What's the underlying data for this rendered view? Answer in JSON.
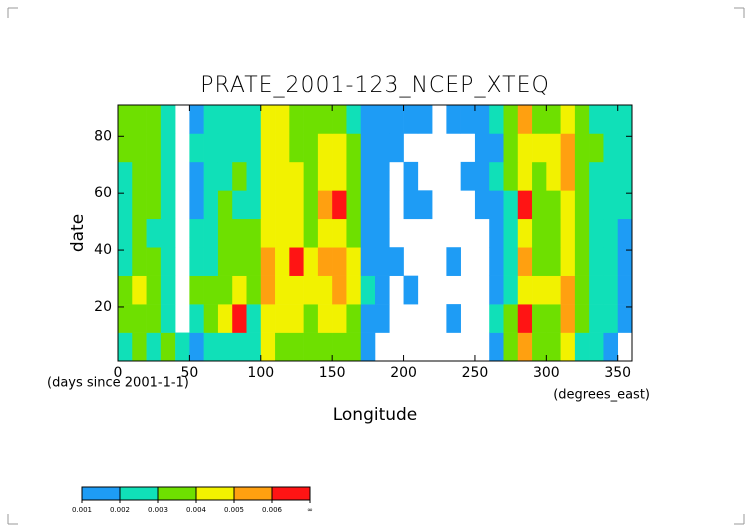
{
  "chart_data": {
    "type": "heatmap",
    "title": "PRATE_2001-123_NCEP_XTEQ",
    "x_label": "Longitude",
    "y_label": "date",
    "x_units": "(degrees_east)",
    "y_units": "(days since 2001-1-1)",
    "xlim": [
      0,
      360
    ],
    "ylim": [
      1,
      91
    ],
    "xticks": [
      0,
      50,
      100,
      150,
      200,
      250,
      300,
      350
    ],
    "yticks": [
      20,
      40,
      60,
      80
    ],
    "x_edges": [
      0,
      10,
      20,
      30,
      40,
      50,
      60,
      70,
      80,
      90,
      100,
      110,
      120,
      130,
      140,
      150,
      160,
      170,
      180,
      190,
      200,
      210,
      220,
      230,
      240,
      250,
      260,
      270,
      280,
      290,
      300,
      310,
      320,
      330,
      340,
      350,
      360
    ],
    "y_edges": [
      1,
      11,
      21,
      31,
      41,
      51,
      61,
      71,
      81,
      91
    ],
    "z": [
      [
        0.0025,
        0.003,
        0.0025,
        0.003,
        0.002,
        0.0015,
        0.002,
        0.0025,
        0.002,
        0.002,
        0.004,
        0.0035,
        0.0035,
        0.003,
        0.0035,
        0.0035,
        0.003,
        0.0015,
        0,
        0,
        0,
        0,
        0,
        0,
        0,
        0,
        0.0015,
        0.003,
        0.005,
        0.0035,
        0.0035,
        0.0045,
        0.0025,
        0.002,
        0.0015,
        0
      ],
      [
        0.003,
        0.003,
        0.003,
        0.0025,
        0,
        0.002,
        0.003,
        0.004,
        0.006,
        0.0025,
        0.0045,
        0.0045,
        0.004,
        0.0035,
        0.004,
        0.0045,
        0.0035,
        0.0015,
        0.001,
        0,
        0,
        0,
        0,
        0.001,
        0,
        0,
        0.002,
        0.003,
        0.006,
        0.0035,
        0.0035,
        0.005,
        0.003,
        0.002,
        0.002,
        0.0015
      ],
      [
        0.0035,
        0.004,
        0.0035,
        0.0025,
        0,
        0.003,
        0.003,
        0.0035,
        0.004,
        0.003,
        0.005,
        0.0045,
        0.0045,
        0.004,
        0.0045,
        0.005,
        0.004,
        0.002,
        0.001,
        0,
        0.001,
        0,
        0,
        0,
        0,
        0,
        0.0015,
        0.0025,
        0.0045,
        0.004,
        0.004,
        0.005,
        0.003,
        0.0025,
        0.002,
        0.0015
      ],
      [
        0.0025,
        0.003,
        0.003,
        0.002,
        0,
        0.002,
        0.0025,
        0.003,
        0.003,
        0.003,
        0.0055,
        0.0045,
        0.006,
        0.004,
        0.005,
        0.0055,
        0.004,
        0.0015,
        0.001,
        0.001,
        0,
        0,
        0,
        0.001,
        0,
        0,
        0.001,
        0.0025,
        0.0055,
        0.0035,
        0.003,
        0.0045,
        0.003,
        0.002,
        0.002,
        0.0015
      ],
      [
        0.0025,
        0.003,
        0.0025,
        0.002,
        0,
        0.002,
        0.0025,
        0.003,
        0.003,
        0.003,
        0.0045,
        0.004,
        0.0045,
        0.0035,
        0.0045,
        0.0045,
        0.0035,
        0.0015,
        0.001,
        0,
        0,
        0,
        0,
        0,
        0,
        0,
        0.0015,
        0.0025,
        0.004,
        0.0035,
        0.0035,
        0.0045,
        0.003,
        0.002,
        0.002,
        0.0015
      ],
      [
        0.002,
        0.003,
        0.003,
        0.0025,
        0,
        0.0015,
        0.002,
        0.003,
        0.0025,
        0.0025,
        0.0045,
        0.004,
        0.004,
        0.0035,
        0.005,
        0.006,
        0.0035,
        0.0015,
        0.001,
        0,
        0.001,
        0.001,
        0,
        0,
        0,
        0.001,
        0.0015,
        0.0025,
        0.006,
        0.0035,
        0.0035,
        0.0045,
        0.003,
        0.0025,
        0.002,
        0.002
      ],
      [
        0.0025,
        0.003,
        0.003,
        0.0025,
        0,
        0.0015,
        0.002,
        0.0025,
        0.003,
        0.0025,
        0.0045,
        0.004,
        0.004,
        0.0035,
        0.0045,
        0.0045,
        0.003,
        0.0015,
        0.001,
        0,
        0.001,
        0,
        0,
        0,
        0.001,
        0.0015,
        0.002,
        0.003,
        0.0045,
        0.0035,
        0.004,
        0.005,
        0.003,
        0.0025,
        0.0025,
        0.002
      ],
      [
        0.003,
        0.003,
        0.003,
        0.0025,
        0,
        0.002,
        0.0025,
        0.0025,
        0.002,
        0.0025,
        0.004,
        0.0045,
        0.0035,
        0.0035,
        0.004,
        0.004,
        0.003,
        0.0015,
        0.001,
        0.001,
        0,
        0,
        0,
        0,
        0,
        0.001,
        0.0015,
        0.003,
        0.004,
        0.004,
        0.004,
        0.005,
        0.0035,
        0.003,
        0.0025,
        0.002
      ],
      [
        0.003,
        0.0035,
        0.003,
        0.0025,
        0,
        0.0015,
        0.002,
        0.002,
        0.002,
        0.002,
        0.0045,
        0.0045,
        0.0035,
        0.003,
        0.0035,
        0.0035,
        0.0025,
        0.0015,
        0.001,
        0.001,
        0.001,
        0.001,
        0,
        0.001,
        0.001,
        0.0015,
        0.002,
        0.003,
        0.005,
        0.0035,
        0.0035,
        0.0045,
        0.003,
        0.0025,
        0.002,
        0.002
      ]
    ],
    "levels": [
      0.001,
      0.002,
      0.003,
      0.004,
      0.005,
      0.006
    ],
    "top_label": "∞",
    "colors": [
      "#1e9cf5",
      "#10e0b8",
      "#6ee000",
      "#f2f200",
      "#ffa010",
      "#ff1414"
    ]
  }
}
